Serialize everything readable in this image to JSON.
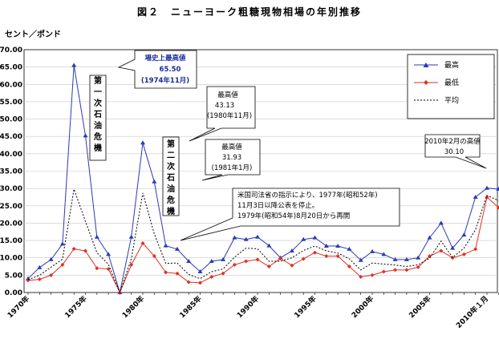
{
  "title": "図２　ニューヨーク粗糖現物相場の年別推移",
  "unit_label": "セント／ポンド",
  "chart_data": {
    "type": "line",
    "ylim": [
      0,
      70
    ],
    "yticks": [
      "0.00",
      "5.00",
      "10.00",
      "15.00",
      "20.00",
      "25.00",
      "30.00",
      "35.00",
      "40.00",
      "45.00",
      "50.00",
      "55.00",
      "60.00",
      "65.00",
      "70.00"
    ],
    "xtick_labels": [
      "1970年",
      "1975年",
      "1980年",
      "1985年",
      "1990年",
      "1995年",
      "2000年",
      "2005年",
      "2010年１月"
    ],
    "grid": true,
    "legend_position": "top-right",
    "series": [
      {
        "name": "最高",
        "color": "#2a3ab8",
        "style": "solid",
        "marker": "triangle",
        "values": [
          4.0,
          7.2,
          9.5,
          14.0,
          65.5,
          45.2,
          16.0,
          11.0,
          0.0,
          16.0,
          43.13,
          31.93,
          13.5,
          12.5,
          9.0,
          6.0,
          9.0,
          9.5,
          15.8,
          15.3,
          16.0,
          13.5,
          10.0,
          12.0,
          15.3,
          15.8,
          13.4,
          13.4,
          12.5,
          9.3,
          11.8,
          11.0,
          9.5,
          9.5,
          10.0,
          15.8,
          20.0,
          12.8,
          16.6,
          27.5,
          30.1,
          29.8
        ]
      },
      {
        "name": "最低",
        "color": "#e03020",
        "style": "solid",
        "marker": "diamond",
        "values": [
          3.5,
          3.8,
          5.0,
          8.0,
          12.6,
          12.0,
          7.0,
          6.8,
          0.0,
          8.0,
          14.2,
          10.5,
          5.8,
          5.5,
          3.0,
          2.8,
          4.5,
          5.5,
          8.0,
          9.0,
          9.5,
          7.5,
          9.8,
          7.8,
          9.7,
          11.5,
          10.5,
          10.5,
          7.5,
          4.5,
          5.0,
          6.0,
          6.5,
          6.5,
          7.3,
          10.5,
          12.0,
          10.0,
          11.0,
          12.5,
          27.5,
          24.5
        ]
      },
      {
        "name": "平均",
        "color": "#000000",
        "style": "dotted",
        "marker": "none",
        "values": [
          3.7,
          5.0,
          7.3,
          9.6,
          29.8,
          20.5,
          11.5,
          8.1,
          0.0,
          9.7,
          28.7,
          16.9,
          8.4,
          8.5,
          5.2,
          4.0,
          6.0,
          6.8,
          10.2,
          12.8,
          12.6,
          9.0,
          9.0,
          10.0,
          12.1,
          13.4,
          12.0,
          11.4,
          9.7,
          6.5,
          8.5,
          8.2,
          7.9,
          7.5,
          8.0,
          9.9,
          14.8,
          10.1,
          12.8,
          18.1,
          28.0,
          26.5
        ]
      }
    ]
  },
  "annotations": {
    "a1": {
      "line1": "場史上最高値",
      "line2": "65.50",
      "line3": "(1974年11月)"
    },
    "a2": {
      "line1": "最高値",
      "line2": "43.13",
      "line3": "(1980年11月)"
    },
    "a3": {
      "line1": "最高値",
      "line2": "31.93",
      "line3": "(1981年1月)"
    },
    "a4": {
      "line1": "米国司法省の指示により、1977年(昭和52年)",
      "line2": "11月3日以降公表を停止。",
      "line3": "1979年(昭和54年)8月20日から再開"
    },
    "a5": {
      "line1": "2010年2月の高値",
      "line2": "30.10"
    },
    "crisis1": "第一次石油危機",
    "crisis2": "第二次石油危機"
  },
  "legend": {
    "high": "最高",
    "low": "最低",
    "avg": "平均"
  }
}
